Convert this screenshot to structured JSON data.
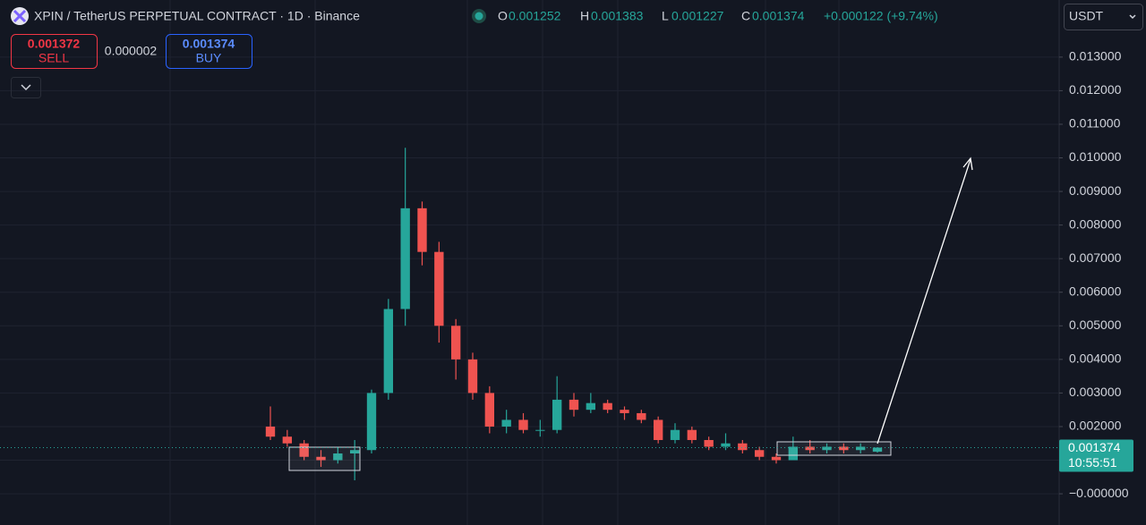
{
  "header": {
    "title": "XPIN / TetherUS PERPETUAL CONTRACT · 1D · Binance",
    "open_label": "O",
    "open": "0.001252",
    "high_label": "H",
    "high": "0.001383",
    "low_label": "L",
    "low": "0.001227",
    "close_label": "C",
    "close": "0.001374",
    "change": "+0.000122 (+9.74%)"
  },
  "trade": {
    "sell_price": "0.001372",
    "sell": "SELL",
    "spread": "0.000002",
    "buy_price": "0.001374",
    "buy": "BUY"
  },
  "currency": "USDT",
  "chart_data": {
    "type": "candlestick",
    "open": [
      0.002,
      0.0017,
      0.0015,
      0.0011,
      0.001,
      0.0012,
      0.0013,
      0.003,
      0.0055,
      0.0085,
      0.0072,
      0.005,
      0.004,
      0.003,
      0.002,
      0.0022,
      0.0019,
      0.0019,
      0.0028,
      0.0025,
      0.0027,
      0.0025,
      0.0024,
      0.0022,
      0.0016,
      0.0019,
      0.0016,
      0.0014,
      0.0015,
      0.0013,
      0.0011,
      0.001,
      0.0014,
      0.0013,
      0.0014,
      0.0013,
      0.001252
    ],
    "high": [
      0.0026,
      0.0019,
      0.0016,
      0.0013,
      0.0014,
      0.0016,
      0.0031,
      0.0058,
      0.0103,
      0.0087,
      0.0075,
      0.0052,
      0.0042,
      0.0032,
      0.0025,
      0.0024,
      0.0022,
      0.0035,
      0.003,
      0.003,
      0.0028,
      0.0026,
      0.0025,
      0.0023,
      0.0021,
      0.002,
      0.0017,
      0.0018,
      0.0016,
      0.0014,
      0.0012,
      0.0017,
      0.0016,
      0.0015,
      0.0015,
      0.0015,
      0.001383
    ],
    "low": [
      0.0016,
      0.0014,
      0.001,
      0.0008,
      0.0009,
      0.0004,
      0.0012,
      0.0028,
      0.005,
      0.0068,
      0.0045,
      0.0034,
      0.0028,
      0.0018,
      0.0018,
      0.0018,
      0.0017,
      0.0018,
      0.0023,
      0.0024,
      0.0024,
      0.0022,
      0.0021,
      0.0015,
      0.0015,
      0.0015,
      0.0013,
      0.0013,
      0.0012,
      0.001,
      0.0009,
      0.001,
      0.0012,
      0.0012,
      0.0012,
      0.0012,
      0.001227
    ],
    "close": [
      0.0017,
      0.0015,
      0.0011,
      0.001,
      0.0012,
      0.0013,
      0.003,
      0.0055,
      0.0085,
      0.0072,
      0.005,
      0.004,
      0.003,
      0.002,
      0.0022,
      0.0019,
      0.0019,
      0.0028,
      0.0025,
      0.0027,
      0.0025,
      0.0024,
      0.0022,
      0.0016,
      0.0019,
      0.0016,
      0.0014,
      0.0015,
      0.0013,
      0.0011,
      0.001,
      0.0014,
      0.0013,
      0.0014,
      0.0013,
      0.0014,
      0.001374
    ],
    "up_color": "#26a69a",
    "down_color": "#ef5350",
    "ylim": [
      -0.00093,
      0.0147
    ],
    "yticks": [
      {
        "value": 0,
        "label": "−0.000000"
      },
      {
        "value": 0.001,
        "label": "0.001000"
      },
      {
        "value": 0.002,
        "label": "0.002000"
      },
      {
        "value": 0.003,
        "label": "0.003000"
      },
      {
        "value": 0.004,
        "label": "0.004000"
      },
      {
        "value": 0.005,
        "label": "0.005000"
      },
      {
        "value": 0.006,
        "label": "0.006000"
      },
      {
        "value": 0.007,
        "label": "0.007000"
      },
      {
        "value": 0.008,
        "label": "0.008000"
      },
      {
        "value": 0.009,
        "label": "0.009000"
      },
      {
        "value": 0.01,
        "label": "0.010000"
      },
      {
        "value": 0.011,
        "label": "0.011000"
      },
      {
        "value": 0.012,
        "label": "0.012000"
      },
      {
        "value": 0.013,
        "label": "0.013000"
      }
    ],
    "grid": true,
    "last_price": 0.001374,
    "countdown": "10:55:51"
  }
}
